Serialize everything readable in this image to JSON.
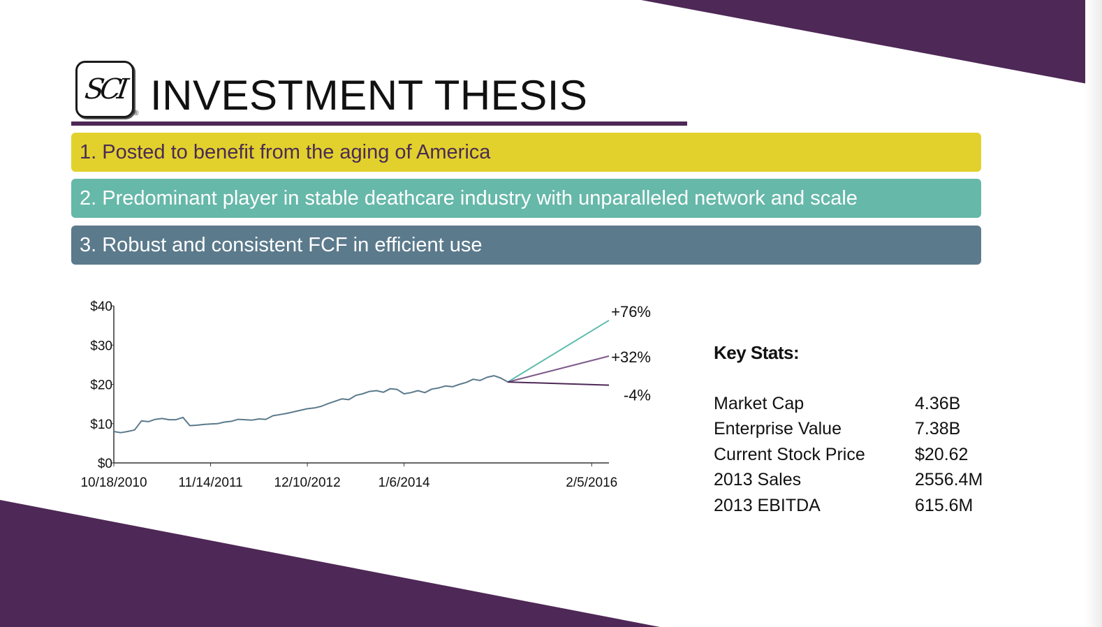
{
  "title": "INVESTMENT THESIS",
  "logo": {
    "icon": "sci-monogram-logo",
    "text": "SCI",
    "registered": "®"
  },
  "thesis_points": [
    "1. Posted to benefit from the aging of America",
    "2. Predominant player in stable deathcare industry with unparalleled network and scale",
    "3. Robust and consistent  FCF in efficient use"
  ],
  "colors": {
    "purple": "#4e2856",
    "yellow_bar": "#e2d12c",
    "teal_bar": "#66b8a9",
    "slate_bar": "#5b7a8c",
    "price_line": "#5b7a8c",
    "bull_line": "#5ebcac",
    "base_line": "#7d5a8a",
    "bear_line": "#4e2856"
  },
  "chart_data": {
    "type": "line",
    "x_tick_labels": [
      "10/18/2010",
      "11/14/2011",
      "12/10/2012",
      "1/6/2014",
      "2/5/2016"
    ],
    "x_tick_dates": [
      "2010-10-18",
      "2011-11-14",
      "2012-12-10",
      "2014-01-06",
      "2016-02-05"
    ],
    "y_tick_labels": [
      "$0",
      "$10",
      "$20",
      "$30",
      "$40"
    ],
    "y_ticks": [
      0,
      10,
      20,
      30,
      40
    ],
    "ylim": [
      0,
      40
    ],
    "xlim": [
      "2010-10-18",
      "2016-04-15"
    ],
    "grid": false,
    "series": [
      {
        "role": "price",
        "x": [
          "2010-10-18",
          "2010-11-15",
          "2010-12-13",
          "2011-01-10",
          "2011-02-07",
          "2011-03-07",
          "2011-04-04",
          "2011-05-02",
          "2011-05-30",
          "2011-06-27",
          "2011-07-25",
          "2011-08-22",
          "2011-09-19",
          "2011-10-17",
          "2011-11-14",
          "2011-12-12",
          "2012-01-09",
          "2012-02-06",
          "2012-03-05",
          "2012-04-02",
          "2012-04-30",
          "2012-05-28",
          "2012-06-25",
          "2012-07-23",
          "2012-08-20",
          "2012-09-17",
          "2012-10-15",
          "2012-11-12",
          "2012-12-10",
          "2013-01-07",
          "2013-02-04",
          "2013-03-04",
          "2013-04-01",
          "2013-04-29",
          "2013-05-27",
          "2013-06-24",
          "2013-07-22",
          "2013-08-19",
          "2013-09-16",
          "2013-10-14",
          "2013-11-11",
          "2013-12-09",
          "2014-01-06",
          "2014-02-03",
          "2014-03-03",
          "2014-03-31",
          "2014-04-28",
          "2014-05-26",
          "2014-06-23",
          "2014-07-21",
          "2014-08-18",
          "2014-09-15",
          "2014-10-13",
          "2014-11-10",
          "2014-12-08",
          "2015-01-05",
          "2015-02-02",
          "2015-03-02"
        ],
        "y": [
          8.0,
          7.7,
          8.0,
          8.4,
          10.7,
          10.5,
          11.1,
          11.3,
          11.0,
          11.0,
          11.6,
          9.5,
          9.6,
          9.8,
          9.9,
          10.0,
          10.4,
          10.6,
          11.1,
          11.0,
          10.9,
          11.2,
          11.1,
          12.0,
          12.3,
          12.6,
          13.0,
          13.4,
          13.8,
          14.0,
          14.4,
          15.1,
          15.7,
          16.3,
          16.1,
          17.2,
          17.6,
          18.2,
          18.4,
          18.0,
          18.9,
          18.7,
          17.6,
          17.9,
          18.4,
          17.9,
          18.8,
          19.1,
          19.6,
          19.4,
          20.0,
          20.5,
          21.3,
          21.0,
          21.8,
          22.2,
          21.6,
          20.6
        ]
      },
      {
        "role": "projection",
        "label": "+76%",
        "x": [
          "2015-03-02",
          "2016-04-15"
        ],
        "y": [
          20.6,
          36.3
        ]
      },
      {
        "role": "projection",
        "label": "+32%",
        "x": [
          "2015-03-02",
          "2016-04-15"
        ],
        "y": [
          20.6,
          27.2
        ]
      },
      {
        "role": "projection",
        "label": "-4%",
        "x": [
          "2015-03-02",
          "2016-04-15"
        ],
        "y": [
          20.6,
          19.8
        ]
      }
    ]
  },
  "key_stats": {
    "heading": "Key Stats:",
    "rows": [
      {
        "label": "Market Cap",
        "value": "4.36B"
      },
      {
        "label": "Enterprise Value",
        "value": "7.38B"
      },
      {
        "label": "Current Stock Price",
        "value": "$20.62"
      },
      {
        "label": "2013 Sales",
        "value": "2556.4M"
      },
      {
        "label": "2013 EBITDA",
        "value": "615.6M"
      }
    ]
  }
}
